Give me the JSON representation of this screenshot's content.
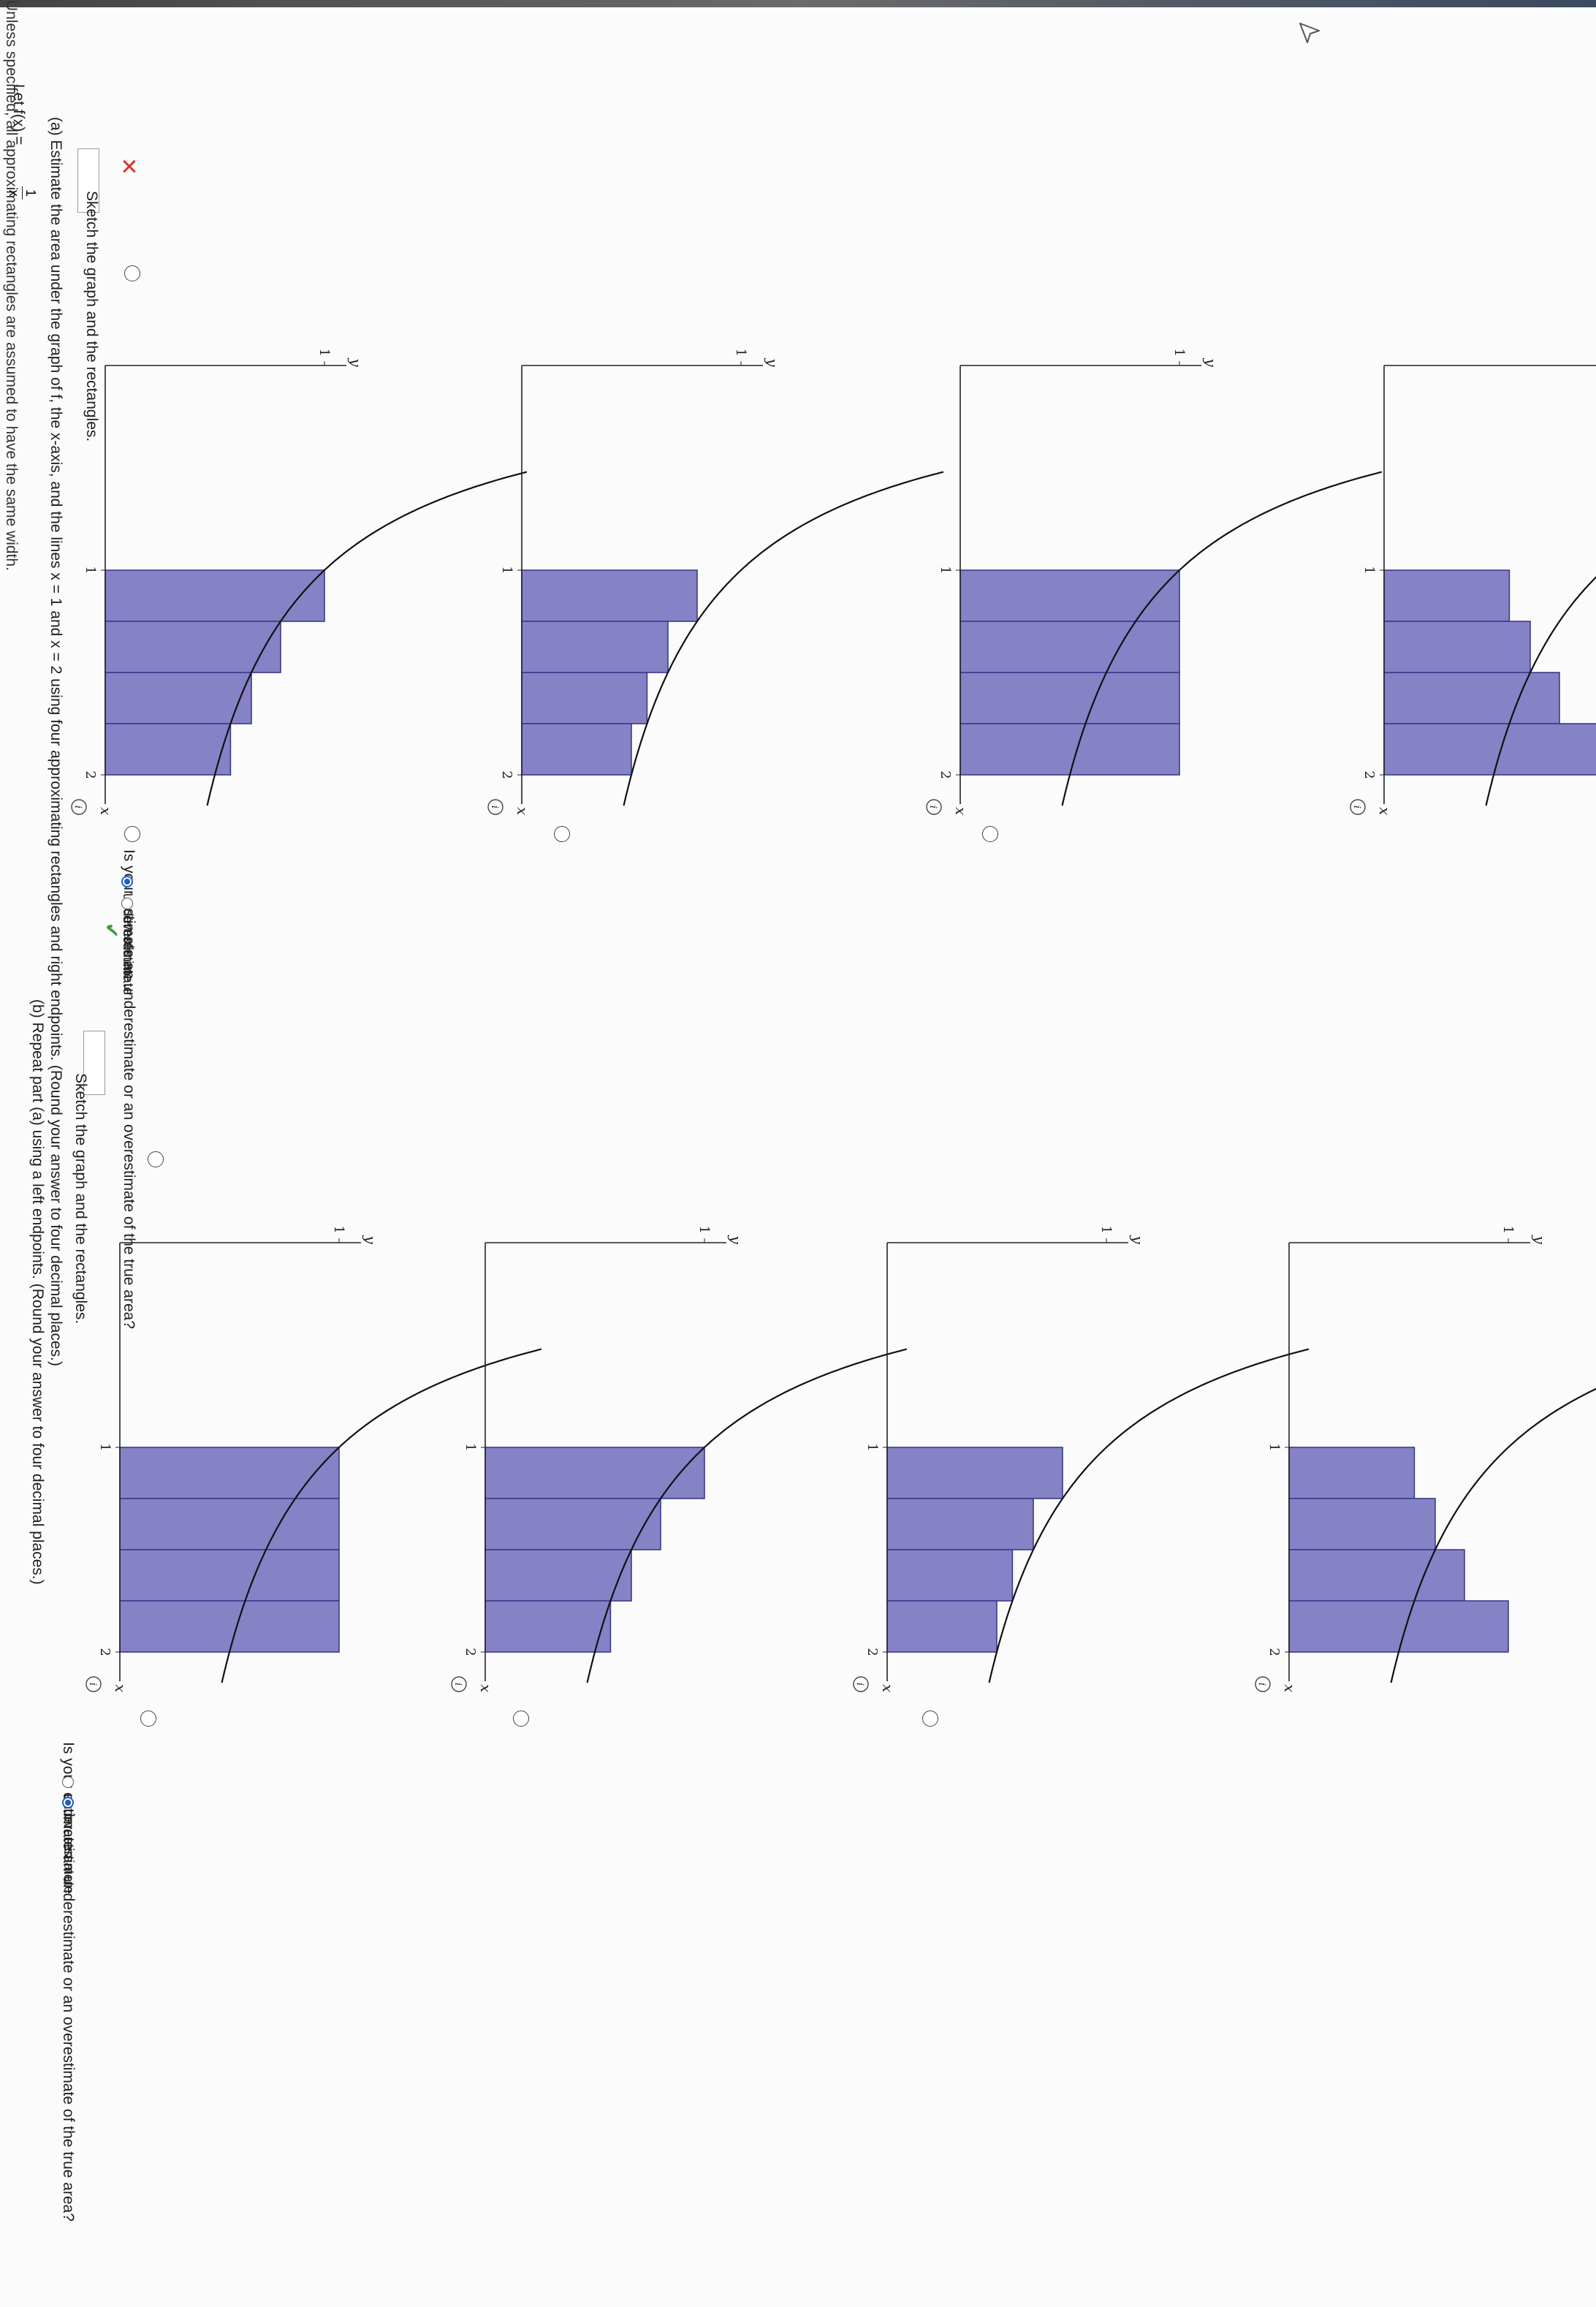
{
  "intro": "Unless specified, all approximating rectangles are assumed to have the same width.",
  "function_lhs": "Let f(x) =",
  "function_num": "1",
  "function_den": "x",
  "part_a": {
    "prompt": "(a)  Estimate the area under the graph of f, the x-axis, and the lines x = 1 and x = 2 using four approximating rectangles and right endpoints. (Round your answer to four decimal places.)",
    "wrong_mark": "✕",
    "sketch_label": "Sketch the graph and the rectangles.",
    "question": "Is your estimate an underestimate or an overestimate of the true area?",
    "options": [
      "underestimate",
      "overestimate"
    ],
    "selected": "underestimate",
    "check_mark": "✔"
  },
  "part_b": {
    "prompt": "(b)  Repeat part (a) using a left endpoints. (Round your answer to four decimal places.)",
    "sketch_label": "Sketch the graph and the rectangles.",
    "question": "Is your estimate an underestimate or an overestimate of the true area?",
    "options": [
      "underestimate",
      "overestimate"
    ],
    "selected": "overestimate"
  },
  "graph_labels": {
    "x_axis": "x",
    "y_axis": "y",
    "tick_x": [
      "1",
      "2"
    ],
    "tick_y": "1",
    "info_icon": "i"
  },
  "chart_data": [
    {
      "type": "bar",
      "part": "a",
      "curve": "y = 1/x",
      "xlim": [
        0,
        2
      ],
      "ylim": [
        0,
        1
      ],
      "rect_x": [
        1,
        1.25,
        1.5,
        1.75
      ],
      "rect_width": 0.25,
      "heights": [
        1.0,
        0.8,
        0.6667,
        0.5714
      ]
    },
    {
      "type": "bar",
      "part": "a",
      "curve": "y = 1/x",
      "xlim": [
        0,
        2
      ],
      "ylim": [
        0,
        1
      ],
      "rect_x": [
        1,
        1.25,
        1.5,
        1.75
      ],
      "rect_width": 0.25,
      "heights": [
        0.8,
        0.6667,
        0.5714,
        0.5
      ]
    },
    {
      "type": "bar",
      "part": "a",
      "curve": "y = 1/x",
      "xlim": [
        0,
        2
      ],
      "ylim": [
        0,
        1
      ],
      "rect_x": [
        1,
        1.25,
        1.5,
        1.75
      ],
      "rect_width": 0.25,
      "heights": [
        1.0,
        1.0,
        1.0,
        1.0
      ]
    },
    {
      "type": "bar",
      "part": "a",
      "curve": "y = 1/x",
      "xlim": [
        0,
        2
      ],
      "ylim": [
        0,
        1
      ],
      "rect_x": [
        1,
        1.25,
        1.5,
        1.75
      ],
      "rect_width": 0.25,
      "heights": [
        0.5714,
        0.6667,
        0.8,
        1.0
      ]
    },
    {
      "type": "bar",
      "part": "b",
      "curve": "y = 1/x",
      "xlim": [
        0,
        2
      ],
      "ylim": [
        0,
        1
      ],
      "rect_x": [
        1,
        1.25,
        1.5,
        1.75
      ],
      "rect_width": 0.25,
      "heights": [
        1.0,
        1.0,
        1.0,
        1.0
      ]
    },
    {
      "type": "bar",
      "part": "b",
      "curve": "y = 1/x",
      "xlim": [
        0,
        2
      ],
      "ylim": [
        0,
        1
      ],
      "rect_x": [
        1,
        1.25,
        1.5,
        1.75
      ],
      "rect_width": 0.25,
      "heights": [
        1.0,
        0.8,
        0.6667,
        0.5714
      ]
    },
    {
      "type": "bar",
      "part": "b",
      "curve": "y = 1/x",
      "xlim": [
        0,
        2
      ],
      "ylim": [
        0,
        1
      ],
      "rect_x": [
        1,
        1.25,
        1.5,
        1.75
      ],
      "rect_width": 0.25,
      "heights": [
        0.8,
        0.6667,
        0.5714,
        0.5
      ]
    },
    {
      "type": "bar",
      "part": "b",
      "curve": "y = 1/x",
      "xlim": [
        0,
        2
      ],
      "ylim": [
        0,
        1
      ],
      "rect_x": [
        1,
        1.25,
        1.5,
        1.75
      ],
      "rect_width": 0.25,
      "heights": [
        0.5714,
        0.6667,
        0.8,
        1.0
      ]
    }
  ]
}
